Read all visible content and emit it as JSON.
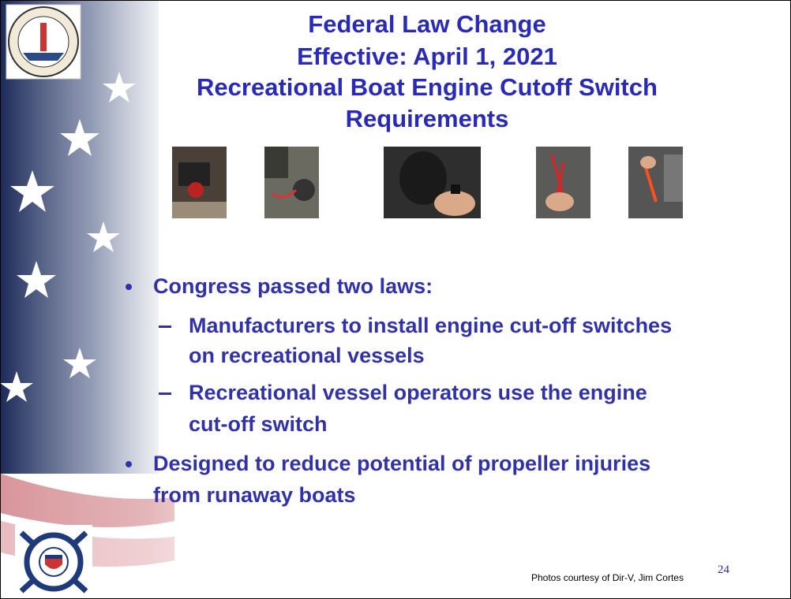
{
  "slide": {
    "title_lines": [
      "Federal Law Change",
      "Effective: April 1, 2021",
      "Recreational Boat Engine Cutoff Switch",
      "Requirements"
    ],
    "bullets": [
      {
        "text_lines": [
          "Congress passed two laws:"
        ],
        "sub_bullets": [
          {
            "text_lines": [
              "Manufacturers to install engine cut-off switches",
              "on recreational vessels"
            ]
          },
          {
            "text_lines": [
              "Recreational vessel operators use the engine",
              "cut-off switch"
            ]
          }
        ]
      },
      {
        "text_lines": [
          "Designed to reduce potential of propeller injuries",
          "from runaway boats"
        ],
        "sub_bullets": []
      }
    ],
    "photo_credit": "Photos courtesy of Dir-V, Jim Cortes",
    "page_number": "24"
  }
}
